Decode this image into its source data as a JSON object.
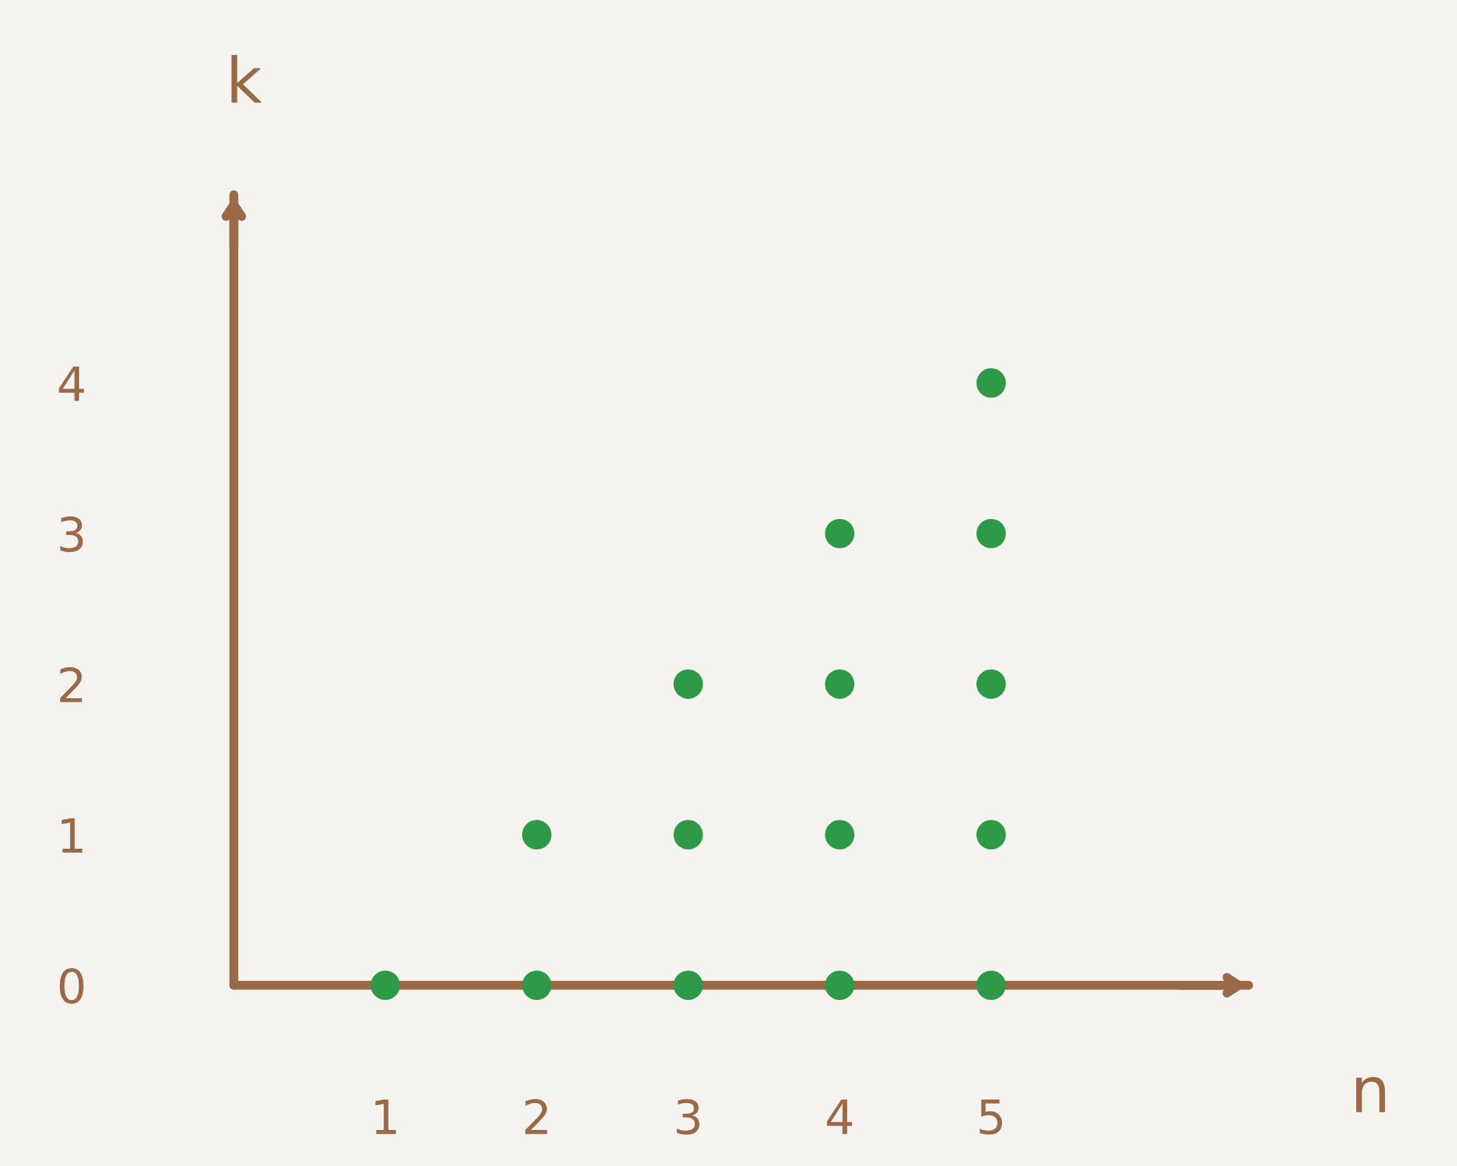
{
  "chart_data": {
    "type": "scatter",
    "xlabel": "n",
    "ylabel": "k",
    "x": [
      1,
      2,
      2,
      3,
      3,
      3,
      4,
      4,
      4,
      4,
      5,
      5,
      5,
      5,
      5
    ],
    "series": [
      {
        "color": "#2e9a48",
        "values": [
          0,
          0,
          1,
          0,
          1,
          2,
          0,
          1,
          2,
          3,
          0,
          1,
          2,
          3,
          4
        ]
      }
    ],
    "xlim": [
      0,
      6.7
    ],
    "ylim": [
      0,
      5.25
    ],
    "xticks": [
      1,
      2,
      3,
      4,
      5
    ],
    "yticks": [
      0,
      1,
      2,
      3,
      4
    ],
    "grid": false,
    "marker": "circle"
  }
}
